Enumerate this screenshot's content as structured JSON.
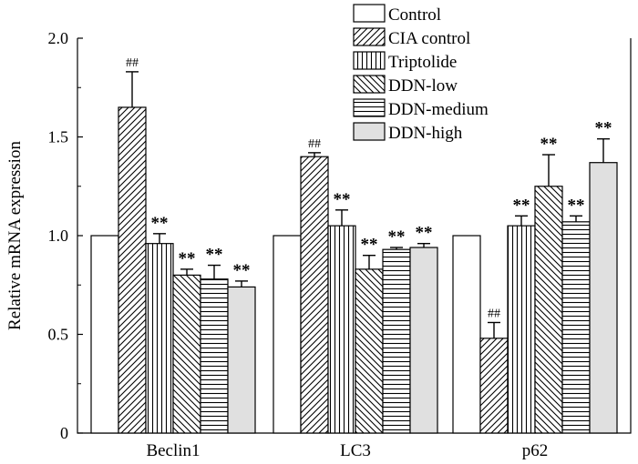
{
  "chart_data": {
    "type": "bar",
    "title": "",
    "xlabel": "",
    "ylabel": "Relative mRNA expression",
    "ylim": [
      0,
      2.0
    ],
    "yticks": [
      "0",
      "0.5",
      "1.0",
      "1.5",
      "2.0"
    ],
    "categories": [
      "Beclin1",
      "LC3",
      "p62"
    ],
    "legend_position": "top-right",
    "series": [
      {
        "name": "Control",
        "pattern": "none",
        "values": [
          1.0,
          1.0,
          1.0
        ],
        "errors": [
          0,
          0,
          0
        ],
        "annotations": [
          "",
          "",
          ""
        ]
      },
      {
        "name": "CIA control",
        "pattern": "diag-right",
        "values": [
          1.65,
          1.4,
          0.48
        ],
        "errors": [
          0.18,
          0.02,
          0.08
        ],
        "annotations": [
          "##",
          "##",
          "##"
        ]
      },
      {
        "name": "Triptolide",
        "pattern": "vertical",
        "values": [
          0.96,
          1.05,
          1.05
        ],
        "errors": [
          0.05,
          0.08,
          0.05
        ],
        "annotations": [
          "**",
          "**",
          "**"
        ]
      },
      {
        "name": "DDN-low",
        "pattern": "diag-left",
        "values": [
          0.8,
          0.83,
          1.25
        ],
        "errors": [
          0.03,
          0.07,
          0.16
        ],
        "annotations": [
          "**",
          "**",
          "**"
        ]
      },
      {
        "name": "DDN-medium",
        "pattern": "horizontal",
        "values": [
          0.78,
          0.93,
          1.07
        ],
        "errors": [
          0.07,
          0.01,
          0.03
        ],
        "annotations": [
          "**",
          "**",
          "**"
        ]
      },
      {
        "name": "DDN-high",
        "pattern": "gray",
        "values": [
          0.74,
          0.94,
          1.37
        ],
        "errors": [
          0.03,
          0.02,
          0.12
        ],
        "annotations": [
          "**",
          "**",
          "**"
        ]
      }
    ]
  }
}
